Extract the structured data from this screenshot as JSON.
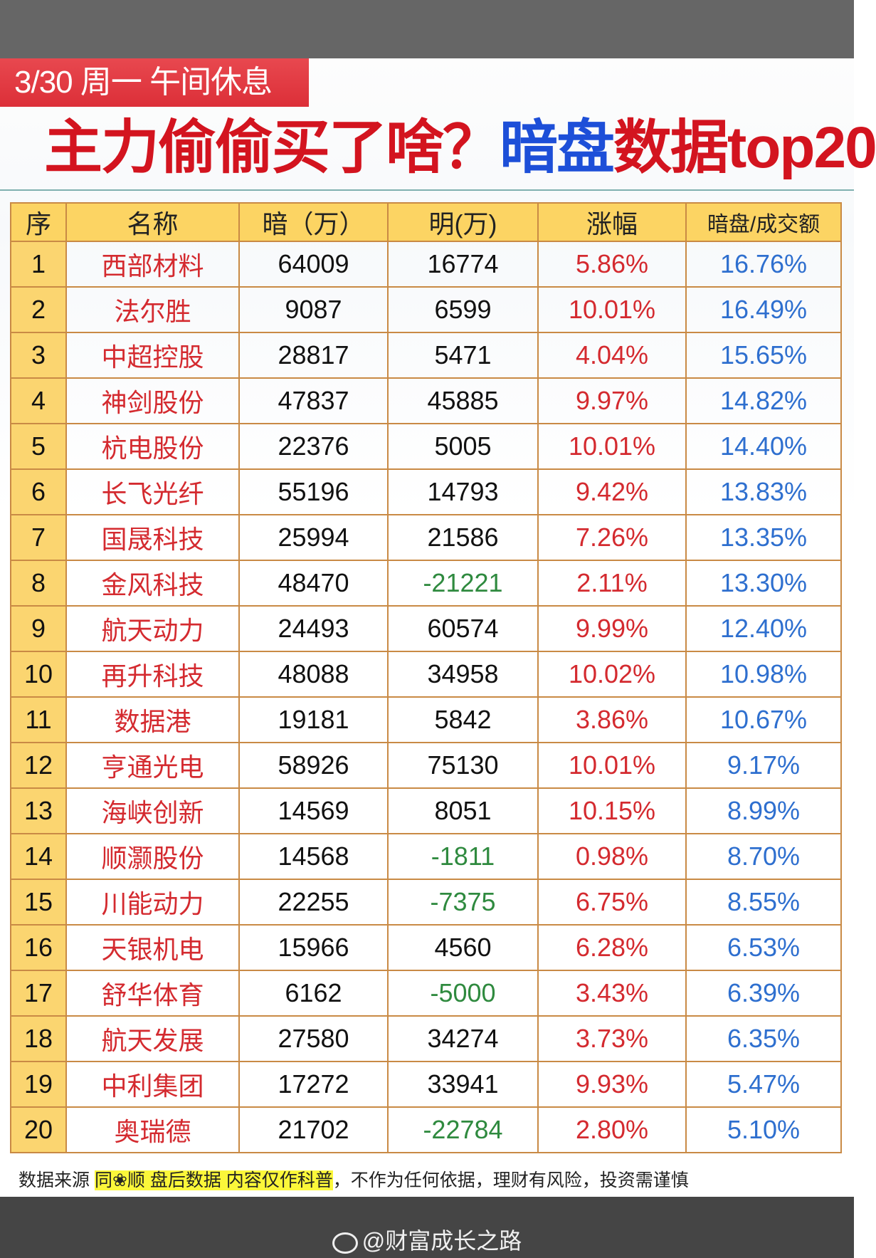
{
  "header": {
    "date_tag": "3/30 周一  午间休息",
    "title_part1": "主力偷偷买了啥？",
    "title_part2": "暗盘",
    "title_part3": "数据top20"
  },
  "colors": {
    "red": "#d42a2f",
    "blue": "#2e6fcf",
    "green": "#2f8a3f",
    "header_yellow": "#fcd463"
  },
  "table": {
    "columns": [
      "序",
      "名称",
      "暗（万）",
      "明(万)",
      "涨幅",
      "暗盘/成交额"
    ],
    "rows": [
      [
        "1",
        "西部材料",
        "64009",
        "16774",
        "5.86%",
        "16.76%"
      ],
      [
        "2",
        "法尔胜",
        "9087",
        "6599",
        "10.01%",
        "16.49%"
      ],
      [
        "3",
        "中超控股",
        "28817",
        "5471",
        "4.04%",
        "15.65%"
      ],
      [
        "4",
        "神剑股份",
        "47837",
        "45885",
        "9.97%",
        "14.82%"
      ],
      [
        "5",
        "杭电股份",
        "22376",
        "5005",
        "10.01%",
        "14.40%"
      ],
      [
        "6",
        "长飞光纤",
        "55196",
        "14793",
        "9.42%",
        "13.83%"
      ],
      [
        "7",
        "国晟科技",
        "25994",
        "21586",
        "7.26%",
        "13.35%"
      ],
      [
        "8",
        "金风科技",
        "48470",
        "-21221",
        "2.11%",
        "13.30%"
      ],
      [
        "9",
        "航天动力",
        "24493",
        "60574",
        "9.99%",
        "12.40%"
      ],
      [
        "10",
        "再升科技",
        "48088",
        "34958",
        "10.02%",
        "10.98%"
      ],
      [
        "11",
        "数据港",
        "19181",
        "5842",
        "3.86%",
        "10.67%"
      ],
      [
        "12",
        "亨通光电",
        "58926",
        "75130",
        "10.01%",
        "9.17%"
      ],
      [
        "13",
        "海峡创新",
        "14569",
        "8051",
        "10.15%",
        "8.99%"
      ],
      [
        "14",
        "顺灏股份",
        "14568",
        "-1811",
        "0.98%",
        "8.70%"
      ],
      [
        "15",
        "川能动力",
        "22255",
        "-7375",
        "6.75%",
        "8.55%"
      ],
      [
        "16",
        "天银机电",
        "15966",
        "4560",
        "6.28%",
        "6.53%"
      ],
      [
        "17",
        "舒华体育",
        "6162",
        "-5000",
        "3.43%",
        "6.39%"
      ],
      [
        "18",
        "航天发展",
        "27580",
        "34274",
        "3.73%",
        "6.35%"
      ],
      [
        "19",
        "中利集团",
        "17272",
        "33941",
        "9.93%",
        "5.47%"
      ],
      [
        "20",
        "奥瑞德",
        "21702",
        "-22784",
        "2.80%",
        "5.10%"
      ]
    ]
  },
  "footer": {
    "prefix": "数据来源 ",
    "highlight": "同❀顺  盘后数据  内容仅作科普",
    "suffix": "，不作为任何依据，理财有风险，投资需谨慎"
  },
  "watermark": {
    "icon": "weibo-icon",
    "text": "@财富成长之路"
  }
}
